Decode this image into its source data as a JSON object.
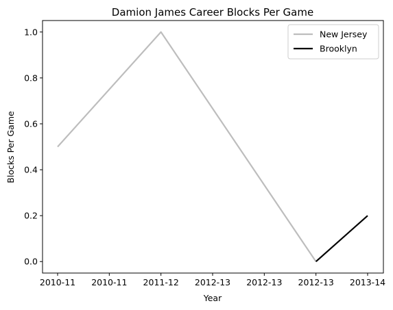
{
  "chart_data": {
    "type": "line",
    "title": "Damion James Career Blocks Per Game",
    "xlabel": "Year",
    "ylabel": "Blocks Per Game",
    "x_tick_labels": [
      "2010-11",
      "2010-11",
      "2011-12",
      "2012-13",
      "2012-13",
      "2012-13",
      "2013-14"
    ],
    "y_ticks": [
      0.0,
      0.2,
      0.4,
      0.6,
      0.8,
      1.0
    ],
    "y_tick_labels": [
      "0.0",
      "0.2",
      "0.4",
      "0.6",
      "0.8",
      "1.0"
    ],
    "ylim": [
      -0.05,
      1.05
    ],
    "legend_position": "upper right",
    "series": [
      {
        "name": "New Jersey",
        "color": "#bdbdbd",
        "points": [
          {
            "x": "2010-11",
            "y": 0.5
          },
          {
            "x": "2011-12",
            "y": 1.0
          },
          {
            "x": "2012-13",
            "y": 0.0
          }
        ]
      },
      {
        "name": "Brooklyn",
        "color": "#000000",
        "points": [
          {
            "x": "2012-13",
            "y": 0.0
          },
          {
            "x": "2013-14",
            "y": 0.2
          }
        ]
      }
    ]
  }
}
